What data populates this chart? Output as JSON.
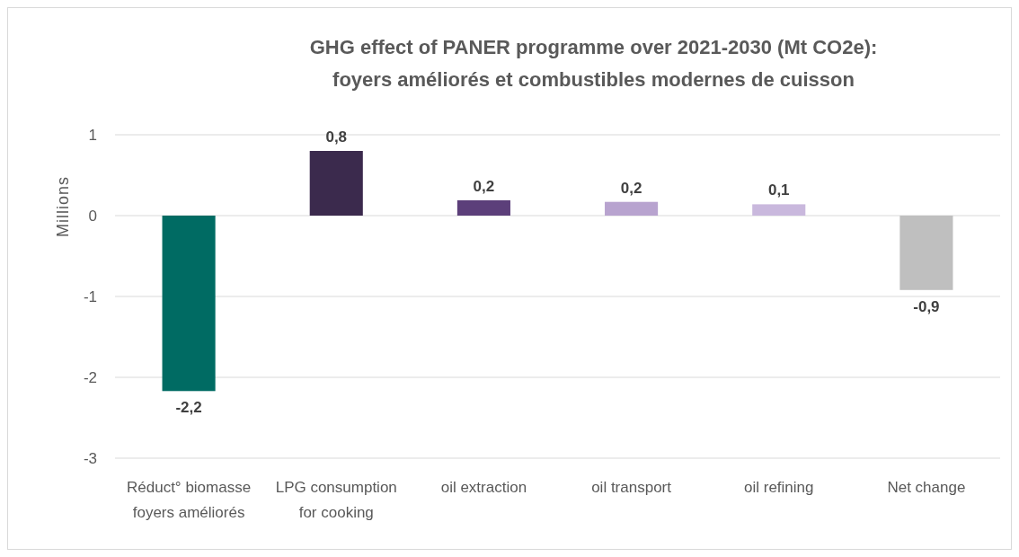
{
  "chart_data": {
    "type": "bar",
    "title": "GHG effect of PANER programme over 2021-2030 (Mt CO2e):",
    "subtitle": "foyers améliorés et combustibles modernes de cuisson",
    "ylabel": "Millions",
    "categories": [
      "Réduct° biomasse foyers améliorés",
      "LPG consumption for cooking",
      "oil extraction",
      "oil transport",
      "oil refining",
      "Net change"
    ],
    "values": [
      -2.17,
      0.8,
      0.19,
      0.17,
      0.14,
      -0.92
    ],
    "colors": [
      "#006b63",
      "#3b2a4d",
      "#5c3f7a",
      "#b8a3cf",
      "#c9b8dd",
      "#bfbfbf"
    ],
    "value_labels": [
      "-2,2",
      "0,8",
      "0,2",
      "0,2",
      "0,1",
      "-0,9"
    ],
    "ylim": [
      -3,
      1
    ],
    "yticks": [
      -3,
      -2,
      -1,
      0,
      1
    ],
    "grid": "y"
  }
}
